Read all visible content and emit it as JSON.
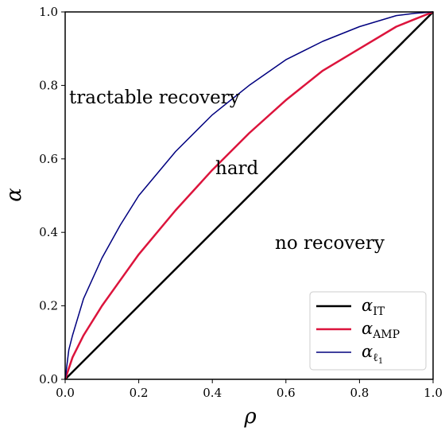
{
  "chart_data": {
    "type": "line",
    "title": "",
    "xlabel": "ρ",
    "ylabel": "α",
    "xlim": [
      0.0,
      1.0
    ],
    "ylim": [
      0.0,
      1.0
    ],
    "xticks": [
      "0.0",
      "0.2",
      "0.4",
      "0.6",
      "0.8",
      "1.0"
    ],
    "yticks": [
      "0.0",
      "0.2",
      "0.4",
      "0.6",
      "0.8",
      "1.0"
    ],
    "grid": false,
    "legend_position": "bottom-right",
    "regions": [
      {
        "label": "tractable recovery"
      },
      {
        "label": "hard"
      },
      {
        "label": "no recovery"
      }
    ],
    "series": [
      {
        "name": "α_IT",
        "legend_main": "α",
        "legend_sub": "IT",
        "color": "#000000",
        "x": [
          0.0,
          1.0
        ],
        "y": [
          0.0,
          1.0
        ]
      },
      {
        "name": "α_AMP",
        "legend_main": "α",
        "legend_sub": "AMP",
        "color": "#dc143c",
        "x": [
          0.0,
          0.02,
          0.05,
          0.1,
          0.15,
          0.2,
          0.3,
          0.4,
          0.5,
          0.6,
          0.7,
          0.8,
          0.9,
          0.95,
          1.0
        ],
        "y": [
          0.0,
          0.06,
          0.12,
          0.2,
          0.27,
          0.34,
          0.46,
          0.57,
          0.67,
          0.76,
          0.84,
          0.9,
          0.96,
          0.98,
          1.0
        ]
      },
      {
        "name": "α_ℓ1",
        "legend_main": "α",
        "legend_sub": "ℓ",
        "legend_subsub": "1",
        "color": "#00007f",
        "x": [
          0.0,
          0.01,
          0.02,
          0.05,
          0.1,
          0.15,
          0.2,
          0.3,
          0.4,
          0.5,
          0.6,
          0.7,
          0.8,
          0.9,
          0.95,
          1.0
        ],
        "y": [
          0.0,
          0.08,
          0.12,
          0.22,
          0.33,
          0.42,
          0.5,
          0.62,
          0.72,
          0.8,
          0.87,
          0.92,
          0.96,
          0.99,
          0.996,
          1.0
        ]
      }
    ]
  }
}
